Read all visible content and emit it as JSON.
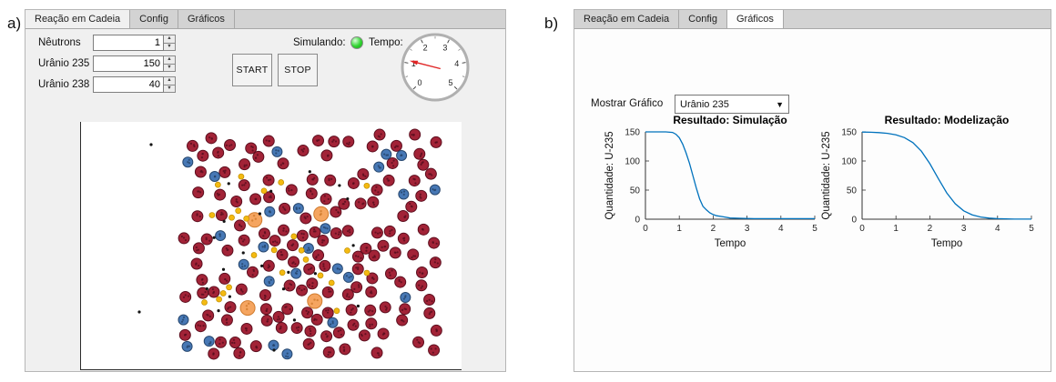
{
  "figure": {
    "label_a": "a)",
    "label_b": "b)"
  },
  "icons": {
    "spinner_up": "▲",
    "spinner_down": "▼",
    "dropdown_arrow": "▼"
  },
  "panel_a": {
    "tabs": [
      {
        "label": "Reação em Cadeia",
        "active": true
      },
      {
        "label": "Config",
        "active": false
      },
      {
        "label": "Gráficos",
        "active": false
      }
    ],
    "fields": [
      {
        "label": "Nêutrons",
        "value": "1"
      },
      {
        "label": "Urânio 235",
        "value": "150"
      },
      {
        "label": "Urânio 238",
        "value": "40"
      }
    ],
    "buttons": {
      "start": "START",
      "stop": "STOP"
    },
    "status": {
      "label": "Simulando:",
      "lamp_color": "#2fd32f"
    },
    "gauge": {
      "label": "Tempo:",
      "min": 0,
      "max": 5,
      "tick_labels": [
        "0",
        "1",
        "2",
        "3",
        "4",
        "5"
      ],
      "value": 1.1,
      "needle_color": "#e02424"
    },
    "simulation": {
      "particle_types": [
        {
          "name": "uranium-238",
          "color": "#a22337",
          "stroke": "#5c0e1e",
          "radius": 6,
          "count": 150
        },
        {
          "name": "uranium-235",
          "color": "#4778b5",
          "stroke": "#27476e",
          "radius": 5.5,
          "count": 26
        },
        {
          "name": "excited-nucleus",
          "color": "#f5a560",
          "stroke": "#d07b2d",
          "radius": 8,
          "count": 4
        },
        {
          "name": "fission-product",
          "color": "#f4ba11",
          "stroke": "#bf8d00",
          "radius": 3,
          "count": 24
        },
        {
          "name": "neutron",
          "color": "#141414",
          "stroke": "#141414",
          "radius": 1.6,
          "count": 20
        }
      ]
    }
  },
  "panel_b": {
    "tabs": [
      {
        "label": "Reação em Cadeia",
        "active": false
      },
      {
        "label": "Config",
        "active": false
      },
      {
        "label": "Gráficos",
        "active": true
      }
    ],
    "selector": {
      "label": "Mostrar Gráfico",
      "value": "Urânio 235"
    }
  },
  "chart_data": [
    {
      "type": "line",
      "title": "Resultado: Simulação",
      "xlabel": "Tempo",
      "ylabel": "Quantidade: U-235",
      "xlim": [
        0,
        5
      ],
      "ylim": [
        0,
        150
      ],
      "xticks": [
        0,
        1,
        2,
        3,
        4,
        5
      ],
      "yticks": [
        0,
        50,
        100,
        150
      ],
      "grid": false,
      "legend": null,
      "line_color": "#0072BD",
      "x": [
        0,
        0.3,
        0.6,
        0.8,
        0.9,
        1.0,
        1.1,
        1.2,
        1.3,
        1.4,
        1.5,
        1.6,
        1.7,
        1.8,
        1.9,
        2.0,
        2.1,
        2.3,
        2.5,
        2.8,
        3.2,
        3.6,
        4.0,
        4.5,
        5.0
      ],
      "y": [
        150,
        150,
        150,
        149,
        146,
        140,
        129,
        114,
        96,
        75,
        54,
        35,
        22,
        16,
        11,
        8,
        6,
        4,
        2,
        1.5,
        1,
        1,
        1,
        1,
        1
      ]
    },
    {
      "type": "line",
      "title": "Resultado: Modelização",
      "xlabel": "Tempo",
      "ylabel": "Quantidade: U-235",
      "xlim": [
        0,
        5
      ],
      "ylim": [
        0,
        150
      ],
      "xticks": [
        0,
        1,
        2,
        3,
        4,
        5
      ],
      "yticks": [
        0,
        50,
        100,
        150
      ],
      "grid": false,
      "legend": null,
      "line_color": "#0072BD",
      "x": [
        0,
        0.25,
        0.5,
        0.75,
        1.0,
        1.25,
        1.5,
        1.75,
        2.0,
        2.25,
        2.5,
        2.75,
        3.0,
        3.25,
        3.5,
        3.75,
        4.0,
        4.5,
        5.0
      ],
      "y": [
        149.7,
        149.4,
        148.7,
        147.5,
        145.0,
        140.2,
        131.5,
        116.8,
        95.5,
        69.8,
        45.2,
        26.5,
        14.4,
        7.5,
        3.8,
        1.9,
        1.0,
        0.2,
        0.1
      ]
    }
  ]
}
